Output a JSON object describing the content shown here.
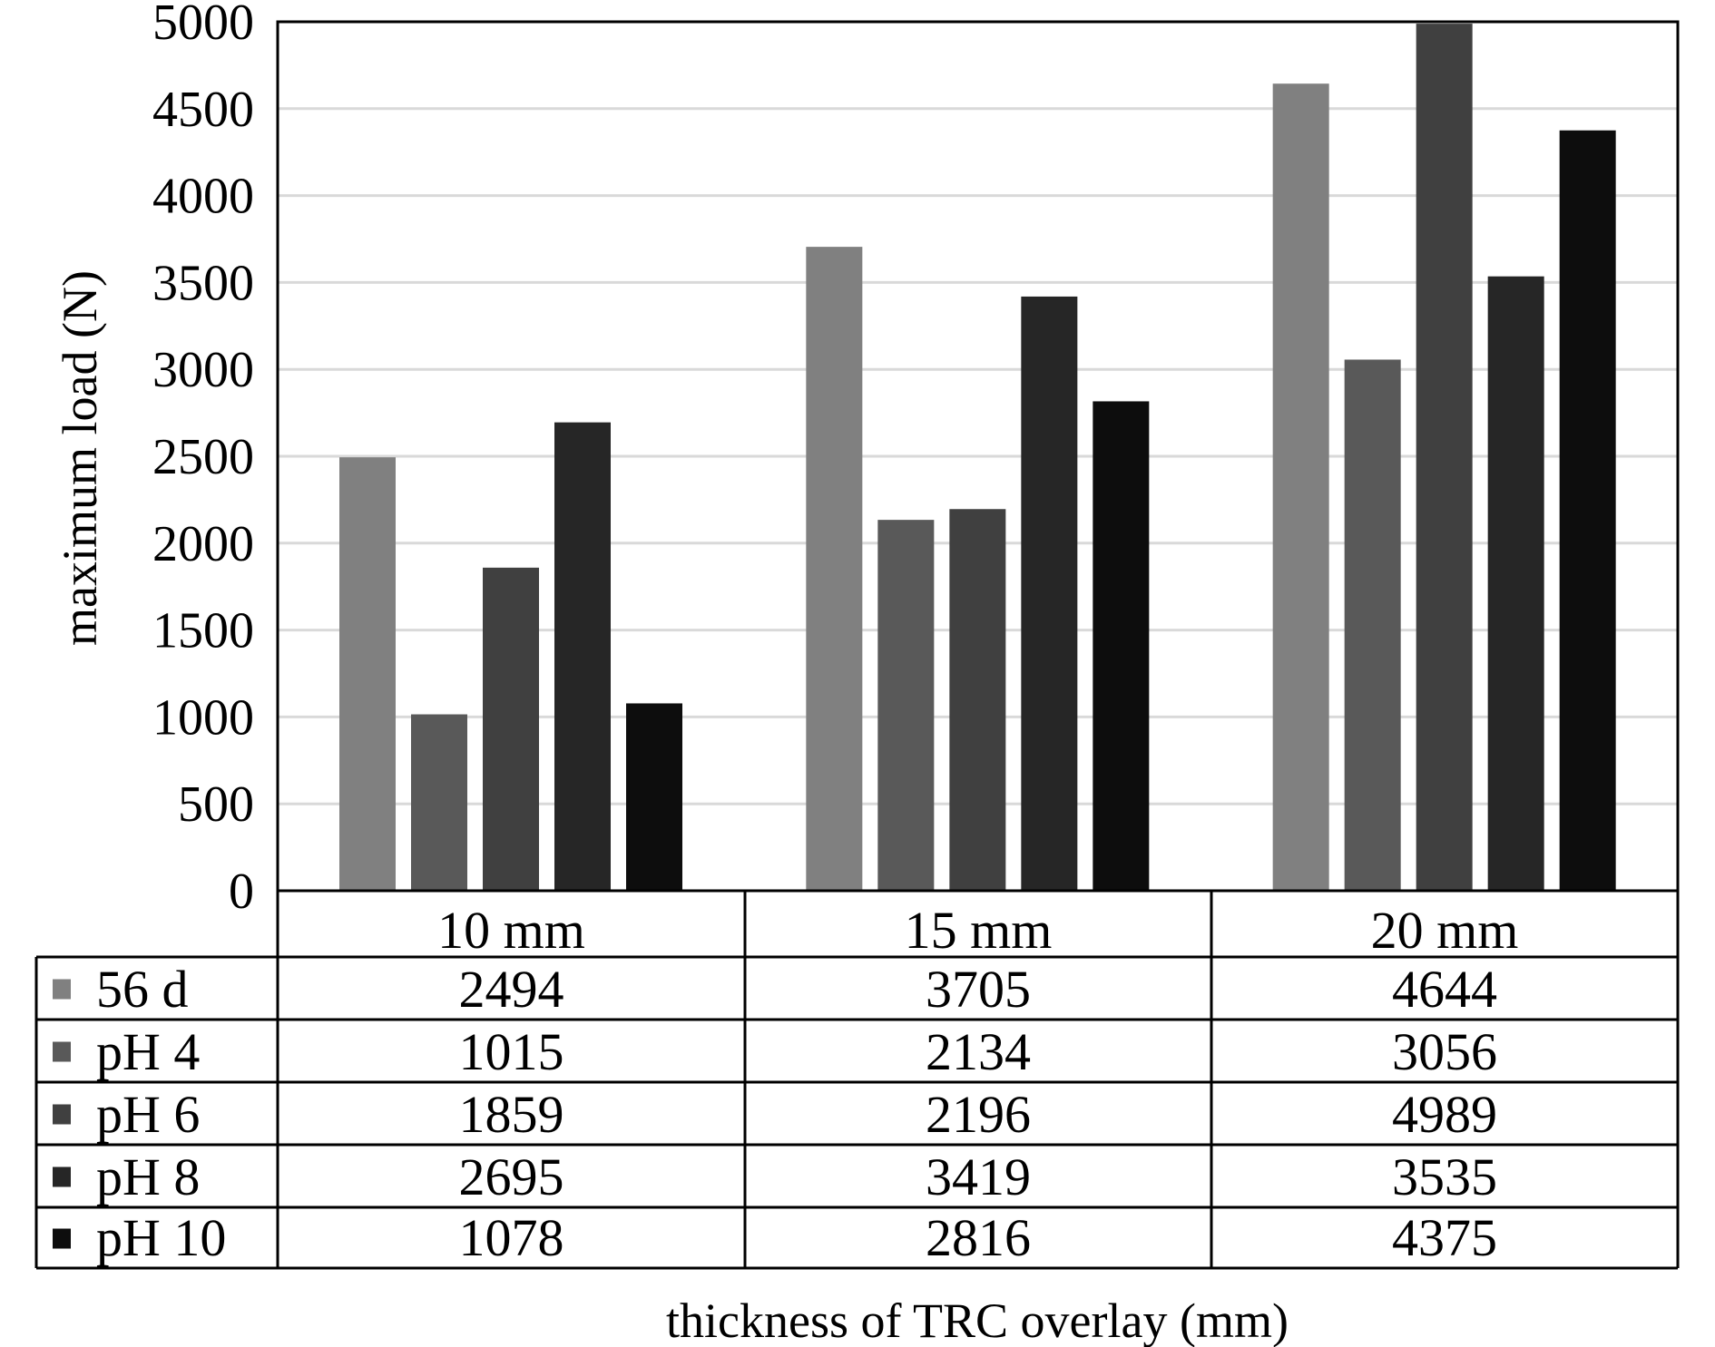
{
  "chart_data": {
    "type": "bar",
    "title": "",
    "xlabel": "thickness of TRC overlay (mm)",
    "ylabel": "maximum load (N)",
    "ylim": [
      0,
      5000
    ],
    "yticks": [
      "0",
      "500",
      "1000",
      "1500",
      "2000",
      "2500",
      "3000",
      "3500",
      "4000",
      "4500",
      "5000"
    ],
    "grid": true,
    "legend": "data-table-left",
    "categories": [
      "10 mm",
      "15 mm",
      "20 mm"
    ],
    "series": [
      {
        "name": "56 d",
        "values": [
          2494,
          3705,
          4644
        ],
        "color": "#808080"
      },
      {
        "name": "pH 4",
        "values": [
          1015,
          2134,
          3056
        ],
        "color": "#595959"
      },
      {
        "name": "pH 6",
        "values": [
          1859,
          2196,
          4989
        ],
        "color": "#404040"
      },
      {
        "name": "pH 8",
        "values": [
          2695,
          3419,
          3535
        ],
        "color": "#262626"
      },
      {
        "name": "pH 10",
        "values": [
          1078,
          2816,
          4375
        ],
        "color": "#0d0d0d"
      }
    ]
  }
}
